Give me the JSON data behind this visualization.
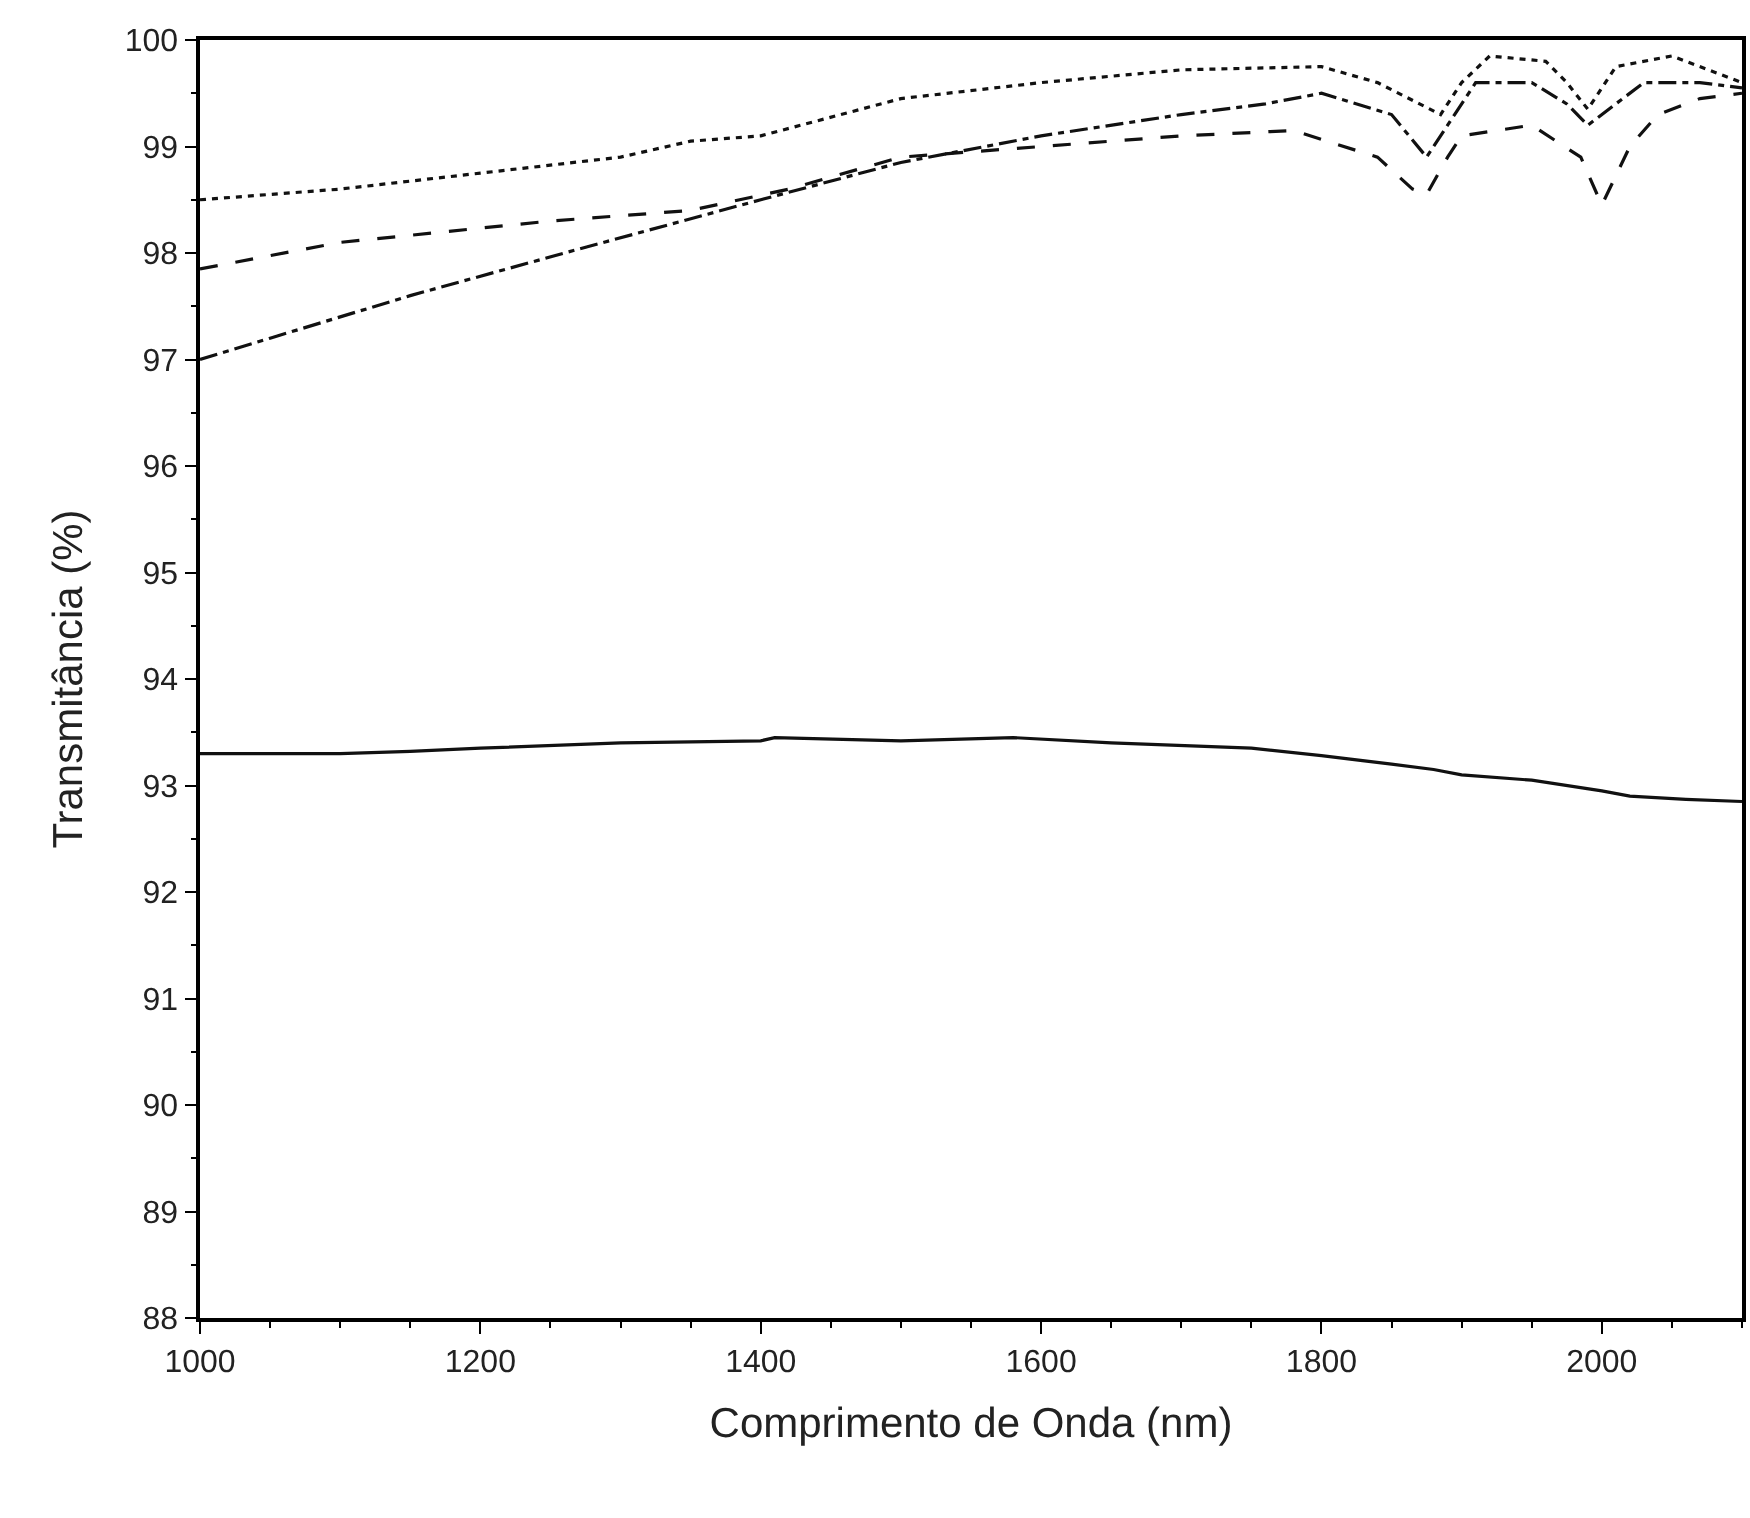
{
  "chart_data": {
    "type": "line",
    "xlabel": "Comprimento de Onda (nm)",
    "ylabel": "Transmitância (%)",
    "xlim": [
      1000,
      2100
    ],
    "ylim": [
      88,
      100
    ],
    "xticks": [
      1000,
      1200,
      1400,
      1600,
      1800,
      2000
    ],
    "yticks": [
      88,
      89,
      90,
      91,
      92,
      93,
      94,
      95,
      96,
      97,
      98,
      99,
      100
    ],
    "marker": "none",
    "series": [
      {
        "color": "#111111",
        "line_style": "dotted",
        "x": [
          1000,
          1100,
          1200,
          1300,
          1350,
          1400,
          1500,
          1600,
          1700,
          1800,
          1840,
          1870,
          1885,
          1900,
          1920,
          1960,
          1975,
          1990,
          2010,
          2050,
          2080,
          2100
        ],
        "values": [
          98.5,
          98.6,
          98.75,
          98.9,
          99.05,
          99.1,
          99.45,
          99.6,
          99.72,
          99.75,
          99.6,
          99.4,
          99.3,
          99.6,
          99.85,
          99.8,
          99.6,
          99.35,
          99.75,
          99.85,
          99.7,
          99.6
        ]
      },
      {
        "color": "#111111",
        "line_style": "dashed",
        "x": [
          1000,
          1100,
          1250,
          1350,
          1420,
          1500,
          1600,
          1700,
          1780,
          1840,
          1865,
          1875,
          1890,
          1900,
          1950,
          1985,
          2000,
          2020,
          2040,
          2070,
          2100
        ],
        "values": [
          97.85,
          98.1,
          98.3,
          98.4,
          98.6,
          98.9,
          99.0,
          99.1,
          99.15,
          98.9,
          98.6,
          98.55,
          98.9,
          99.1,
          99.2,
          98.9,
          98.45,
          99.0,
          99.3,
          99.45,
          99.5
        ]
      },
      {
        "color": "#111111",
        "line_style": "dashdot",
        "x": [
          1000,
          1050,
          1150,
          1260,
          1400,
          1500,
          1600,
          1700,
          1760,
          1800,
          1850,
          1875,
          1890,
          1910,
          1950,
          1975,
          1990,
          2010,
          2030,
          2070,
          2100
        ],
        "values": [
          97.0,
          97.2,
          97.6,
          98.0,
          98.5,
          98.85,
          99.1,
          99.3,
          99.4,
          99.5,
          99.3,
          98.9,
          99.2,
          99.6,
          99.6,
          99.4,
          99.2,
          99.4,
          99.6,
          99.6,
          99.55
        ]
      },
      {
        "color": "#111111",
        "line_style": "solid",
        "x": [
          1000,
          1100,
          1150,
          1200,
          1300,
          1400,
          1410,
          1500,
          1580,
          1650,
          1750,
          1800,
          1850,
          1880,
          1900,
          1950,
          2000,
          2020,
          2060,
          2100
        ],
        "values": [
          93.3,
          93.3,
          93.32,
          93.35,
          93.4,
          93.42,
          93.45,
          93.42,
          93.45,
          93.4,
          93.35,
          93.28,
          93.2,
          93.15,
          93.1,
          93.05,
          92.95,
          92.9,
          92.87,
          92.85
        ]
      }
    ]
  }
}
